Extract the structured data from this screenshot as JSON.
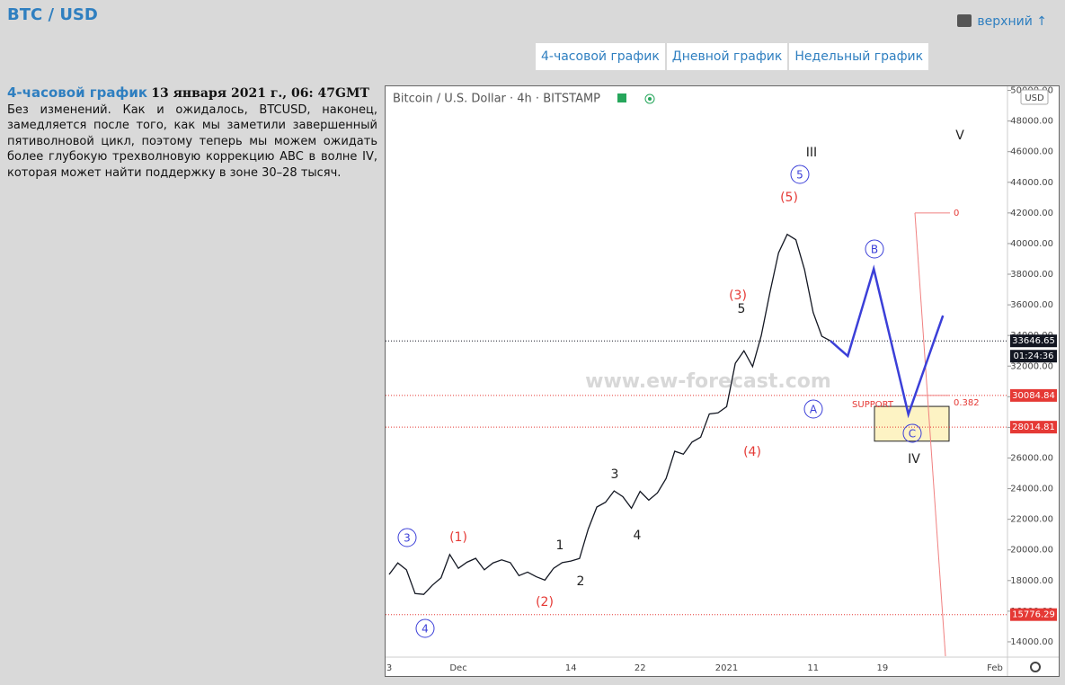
{
  "header": {
    "title": "BTC / USD",
    "top_link": "верхний ↑"
  },
  "tabs": [
    "4-часовой график",
    "Дневной график",
    "Недельный график"
  ],
  "article": {
    "heading": "4-часовой график",
    "date": "13 января 2021 г., 06: 47GMT",
    "body": "Без изменений. Как и ожидалось, BTCUSD, наконец, замедляется после того, как мы заметили завершенный пятиволновой цикл, поэтому теперь мы можем ожидать более глубокую трехволновую коррекцию ABC в волне IV, которая может найти поддержку в зоне 30–28 тысяч."
  },
  "chart_data": {
    "type": "line",
    "title": "Bitcoin / U.S. Dollar · 4h · BITSTAMP",
    "currency": "USD",
    "watermark": "www.ew-forecast.com",
    "categories": [
      "3",
      null,
      null,
      null,
      null,
      null,
      null,
      null,
      "Dec",
      null,
      null,
      null,
      null,
      null,
      null,
      null,
      null,
      null,
      null,
      null,
      null,
      "14",
      null,
      null,
      null,
      null,
      null,
      null,
      null,
      "22",
      null,
      null,
      null,
      null,
      null,
      null,
      null,
      null,
      null,
      "2021",
      null,
      null,
      null,
      null,
      null,
      null,
      null,
      null,
      null,
      "11",
      null,
      null,
      null,
      null,
      null,
      null,
      null,
      "19",
      null,
      null,
      null,
      null,
      null,
      null,
      null,
      null,
      null,
      null,
      null,
      null,
      "Feb"
    ],
    "series": [
      {
        "color": "#131722",
        "values": [
          18400,
          19150,
          18700,
          17150,
          17100,
          17700,
          18180,
          19700,
          18800,
          19200,
          19450,
          18700,
          19150,
          19350,
          19170,
          18320,
          18550,
          18250,
          18030,
          18800,
          19170,
          19270,
          19440,
          21350,
          22800,
          23110,
          23850,
          23480,
          22720,
          23820,
          23250,
          23720,
          24660,
          26440,
          26250,
          27040,
          27360,
          28880,
          28950,
          29350,
          32180,
          33000,
          31970,
          33990,
          36800,
          39400,
          40600,
          40250,
          38300,
          35500,
          33950,
          33646.65,
          null,
          null,
          null,
          null,
          null,
          null,
          null,
          null,
          null,
          null,
          null,
          null,
          null,
          null,
          null,
          null,
          null,
          null,
          null
        ]
      },
      {
        "color": "#3b3fd8",
        "values": [
          null,
          null,
          null,
          null,
          null,
          null,
          null,
          null,
          null,
          null,
          null,
          null,
          null,
          null,
          null,
          null,
          null,
          null,
          null,
          null,
          null,
          null,
          null,
          null,
          null,
          null,
          null,
          null,
          null,
          null,
          null,
          null,
          null,
          null,
          null,
          null,
          null,
          null,
          null,
          null,
          null,
          null,
          null,
          null,
          null,
          null,
          null,
          null,
          null,
          null,
          null,
          33650,
          33150,
          32660,
          34550,
          36450,
          38350,
          35980,
          33600,
          31230,
          28850,
          30460,
          32080,
          33690,
          35300,
          null,
          null,
          null,
          null,
          null,
          null
        ]
      }
    ],
    "ylim": [
      13000,
      50150
    ],
    "yticks": [
      {
        "value": 14000,
        "label": "14000.00"
      },
      {
        "value": 16000,
        "label": "16000.00"
      },
      {
        "value": 18000,
        "label": "18000.00"
      },
      {
        "value": 20000,
        "label": "20000.00"
      },
      {
        "value": 22000,
        "label": "22000.00"
      },
      {
        "value": 24000,
        "label": "24000.00"
      },
      {
        "value": 26000,
        "label": "26000.00"
      },
      {
        "value": 28000,
        "label": "28000.00"
      },
      {
        "value": 30000,
        "label": "30000.00"
      },
      {
        "value": 32000,
        "label": "32000.00"
      },
      {
        "value": 34000,
        "label": "34000.00"
      },
      {
        "value": 36000,
        "label": "36000.00"
      },
      {
        "value": 38000,
        "label": "38000.00"
      },
      {
        "value": 40000,
        "label": "40000.00"
      },
      {
        "value": 42000,
        "label": "42000.00"
      },
      {
        "value": 44000,
        "label": "44000.00"
      },
      {
        "value": 46000,
        "label": "46000.00"
      },
      {
        "value": 48000,
        "label": "48000.00"
      },
      {
        "value": 50000,
        "label": "50000.00"
      }
    ],
    "grid": false,
    "levels": [
      33646.65,
      30084.84,
      28014.81,
      15776.29
    ],
    "level_colors": [
      "#131722",
      "#e53935",
      "#e53935",
      "#e53935"
    ],
    "countdown": "01:24:36",
    "fib": [
      {
        "ratio": 0,
        "price": 42000
      },
      {
        "ratio": 0.382,
        "price": 30084.84
      }
    ],
    "support": {
      "label": "SUPPORT",
      "range": [
        27100,
        29370
      ]
    },
    "waves": [
      "III",
      "V",
      "IV",
      "(5)",
      "(3)",
      "(4)",
      "(1)",
      "(2)",
      "5",
      "3",
      "4",
      "1",
      "2",
      "3",
      "4",
      "5",
      "A",
      "B",
      "C"
    ]
  }
}
